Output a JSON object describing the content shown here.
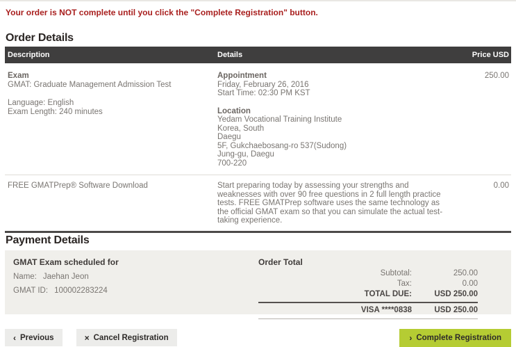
{
  "colors": {
    "warning_red": "#a9201f",
    "table_header_bg": "#3f3e3e",
    "accent_green": "#b5cc33",
    "panel_bg": "#f0efeb"
  },
  "warning_message": "Your order is NOT complete until you click the \"Complete Registration\" button.",
  "order_details": {
    "title": "Order Details",
    "columns": {
      "description": "Description",
      "details": "Details",
      "price": "Price USD"
    },
    "exam_row": {
      "exam_label": "Exam",
      "exam_name": "GMAT: Graduate Management Admission Test",
      "language": "Language: English",
      "exam_length": "Exam Length: 240 minutes",
      "appointment_label": "Appointment",
      "appointment_date": "Friday, February 26, 2016",
      "appointment_start_time": "Start Time: 02:30 PM KST",
      "location_label": "Location",
      "location_lines": [
        "Yedam Vocational Training Institute",
        "Korea, South",
        "Daegu",
        "5F, Gukchaebosang-ro 537(Sudong)",
        "Jung-gu, Daegu",
        "700-220"
      ],
      "price": "250.00"
    },
    "software_row": {
      "description": "FREE GMATPrep® Software Download",
      "details": "Start preparing today by assessing your strengths and weaknesses with over 90 free questions in 2 full length practice tests. FREE GMATPrep software uses the same technology as the official GMAT exam so that you can simulate the actual test-taking experience.",
      "price": "0.00"
    }
  },
  "payment_details": {
    "title": "Payment Details",
    "scheduled_for": {
      "title": "GMAT Exam scheduled for",
      "name_label": "Name:",
      "name": "Jaehan Jeon",
      "gmat_id_label": "GMAT ID:",
      "gmat_id": "100002283224"
    },
    "order_total": {
      "title": "Order Total",
      "rows": [
        {
          "label": "Subtotal:",
          "value": "250.00"
        },
        {
          "label": "Tax:",
          "value": "0.00"
        },
        {
          "label": "TOTAL DUE:",
          "value": "USD 250.00"
        },
        {
          "label": "VISA ****0838",
          "value": "USD 250.00"
        }
      ]
    }
  },
  "footer": {
    "previous": {
      "icon": "‹",
      "label": "Previous"
    },
    "cancel": {
      "icon": "×",
      "label": "Cancel Registration"
    },
    "complete": {
      "icon": "›",
      "label": "Complete Registration"
    }
  }
}
